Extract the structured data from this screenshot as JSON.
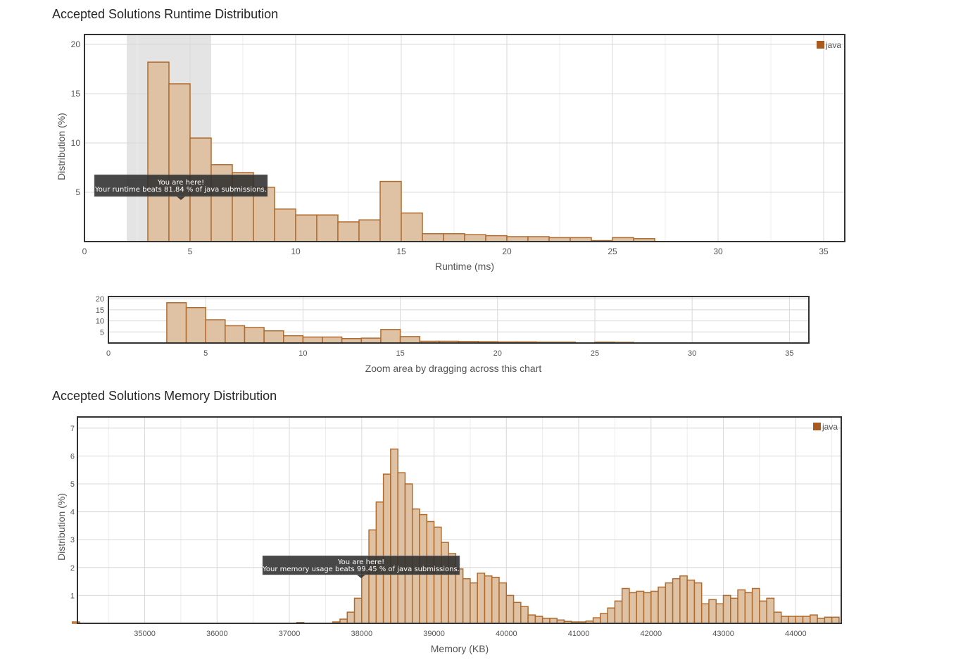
{
  "runtime": {
    "title": "Accepted Solutions Runtime Distribution",
    "tooltip": {
      "line1": "You are here!",
      "line2": "Your runtime beats 81.84 % of java submissions."
    }
  },
  "overview": {
    "caption": "Zoom area by dragging across this chart"
  },
  "memory": {
    "title": "Accepted Solutions Memory Distribution",
    "tooltip": {
      "line1": "You are here!",
      "line2": "Your memory usage beats 99.45 % of java submissions."
    }
  },
  "colors": {
    "bar_fill": "#dfc2a4",
    "bar_stroke": "#b06b2d",
    "highlight": "#e4e4e4",
    "grid": "#d8d8d8",
    "frame": "#333333",
    "legend_swatch": "#a85a20"
  },
  "chart_data": [
    {
      "type": "bar",
      "title": "Accepted Solutions Runtime Distribution",
      "xlabel": "Runtime (ms)",
      "ylabel": "Distribution (%)",
      "xlim": [
        0,
        36
      ],
      "ylim": [
        0,
        21
      ],
      "xticks": [
        0,
        5,
        10,
        15,
        20,
        25,
        30,
        35
      ],
      "yticks": [
        5,
        10,
        15,
        20
      ],
      "grid": true,
      "legend": "top-right",
      "highlight_range": [
        2,
        6
      ],
      "bin_width": 1,
      "series": [
        {
          "name": "java",
          "x": [
            3,
            4,
            5,
            6,
            7,
            8,
            9,
            10,
            11,
            12,
            13,
            14,
            15,
            16,
            17,
            18,
            19,
            20,
            21,
            22,
            23,
            24,
            25,
            26
          ],
          "values": [
            18.2,
            16.0,
            10.5,
            7.8,
            7.0,
            5.5,
            3.3,
            2.7,
            2.7,
            2.0,
            2.2,
            6.1,
            2.9,
            0.8,
            0.8,
            0.7,
            0.6,
            0.5,
            0.5,
            0.4,
            0.4,
            0.1,
            0.4,
            0.3
          ]
        }
      ]
    },
    {
      "type": "bar",
      "title": "",
      "xlabel": "Zoom area by dragging across this chart",
      "ylabel": "",
      "xlim": [
        0,
        36
      ],
      "ylim": [
        0,
        21
      ],
      "xticks": [
        0,
        5,
        10,
        15,
        20,
        25,
        30,
        35
      ],
      "yticks": [
        5,
        10,
        15,
        20
      ],
      "grid": true,
      "bin_width": 1,
      "series": [
        {
          "x": [
            3,
            4,
            5,
            6,
            7,
            8,
            9,
            10,
            11,
            12,
            13,
            14,
            15,
            16,
            17,
            18,
            19,
            20,
            21,
            22,
            23,
            24,
            25,
            26
          ],
          "values": [
            18.2,
            16.0,
            10.5,
            7.8,
            7.0,
            5.5,
            3.3,
            2.7,
            2.7,
            2.0,
            2.2,
            6.1,
            2.9,
            0.8,
            0.8,
            0.7,
            0.6,
            0.5,
            0.5,
            0.4,
            0.4,
            0.1,
            0.4,
            0.3
          ]
        }
      ]
    },
    {
      "type": "bar",
      "title": "Accepted Solutions Memory Distribution",
      "xlabel": "Memory (KB)",
      "ylabel": "Distribution (%)",
      "xlim": [
        34070,
        44630
      ],
      "ylim": [
        0,
        7.4
      ],
      "xticks": [
        35000,
        36000,
        37000,
        38000,
        39000,
        40000,
        41000,
        42000,
        43000,
        44000
      ],
      "yticks": [
        1,
        2,
        3,
        4,
        5,
        6,
        7
      ],
      "grid": true,
      "legend": "top-right",
      "bin_width": 100,
      "series": [
        {
          "name": "java",
          "x": [
            34000,
            37100,
            37600,
            37700,
            37800,
            37900,
            38000,
            38100,
            38200,
            38300,
            38400,
            38500,
            38600,
            38700,
            38800,
            38900,
            39000,
            39100,
            39200,
            39300,
            39400,
            39500,
            39600,
            39700,
            39800,
            39900,
            40000,
            40100,
            40200,
            40300,
            40400,
            40500,
            40600,
            40700,
            40800,
            40900,
            41000,
            41100,
            41200,
            41300,
            41400,
            41500,
            41600,
            41700,
            41800,
            41900,
            42000,
            42100,
            42200,
            42300,
            42400,
            42500,
            42600,
            42700,
            42800,
            42900,
            43000,
            43100,
            43200,
            43300,
            43400,
            43500,
            43600,
            43700,
            43800,
            43900,
            44000,
            44100,
            44200,
            44300,
            44400,
            44500
          ],
          "values": [
            0.05,
            0.03,
            0.05,
            0.15,
            0.4,
            0.9,
            2.0,
            3.35,
            4.35,
            5.35,
            6.25,
            5.4,
            5.0,
            4.1,
            3.9,
            3.65,
            3.45,
            2.9,
            2.5,
            1.95,
            1.6,
            1.45,
            1.8,
            1.7,
            1.65,
            1.45,
            1.0,
            0.75,
            0.6,
            0.3,
            0.25,
            0.18,
            0.18,
            0.12,
            0.07,
            0.05,
            0.05,
            0.08,
            0.2,
            0.35,
            0.55,
            0.8,
            1.25,
            1.1,
            1.15,
            1.1,
            1.15,
            1.3,
            1.45,
            1.6,
            1.7,
            1.55,
            1.45,
            0.7,
            0.85,
            0.7,
            1.0,
            0.9,
            1.2,
            1.1,
            1.25,
            0.8,
            0.9,
            0.4,
            0.25,
            0.25,
            0.25,
            0.25,
            0.3,
            0.18,
            0.22,
            0.22
          ]
        }
      ]
    }
  ]
}
